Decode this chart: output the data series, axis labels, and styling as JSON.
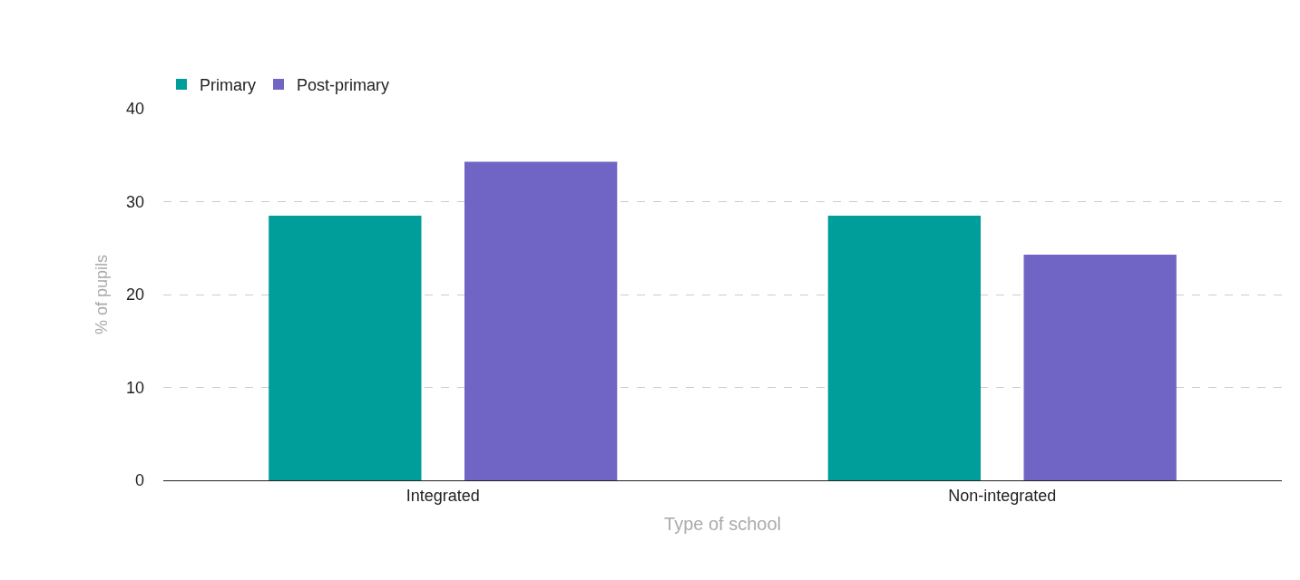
{
  "chart_data": {
    "type": "bar",
    "xlabel": "Type of school",
    "ylabel": "% of pupils",
    "categories": [
      "Integrated",
      "Non-integrated"
    ],
    "series": [
      {
        "name": "Primary",
        "color": "#009e9a",
        "values": [
          28.5,
          28.5
        ]
      },
      {
        "name": "Post-primary",
        "color": "#7065c4",
        "values": [
          34.3,
          24.3
        ]
      }
    ],
    "ylim": [
      0,
      40
    ],
    "yticks": [
      0,
      10,
      20,
      30,
      40
    ],
    "grid": "y",
    "legend": "top left"
  }
}
